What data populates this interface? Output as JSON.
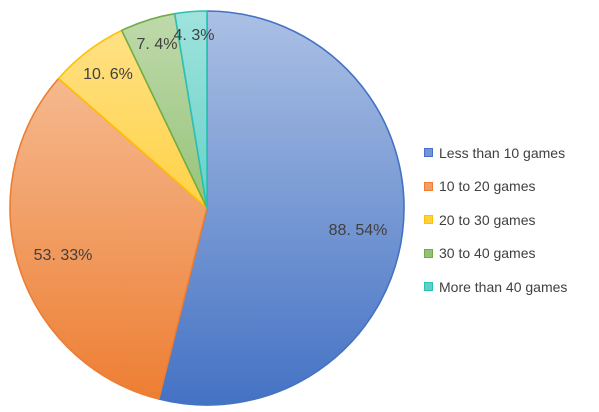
{
  "chart_data": {
    "type": "pie",
    "categories": [
      "Less than 10 games",
      "10 to 20 games",
      "20 to 30 games",
      "30 to 40 games",
      "More than 40 games"
    ],
    "values": [
      88.54,
      53.33,
      10.6,
      7.4,
      4.3
    ],
    "data_labels": [
      "88. 54%",
      "53. 33%",
      "10. 6%",
      "7. 4%",
      "4. 3%"
    ],
    "colors": [
      "#4472c4",
      "#ed7d31",
      "#ffc000",
      "#70ad47",
      "#2bc0b4"
    ],
    "legend_position": "right",
    "start_angle": "top, clockwise"
  }
}
